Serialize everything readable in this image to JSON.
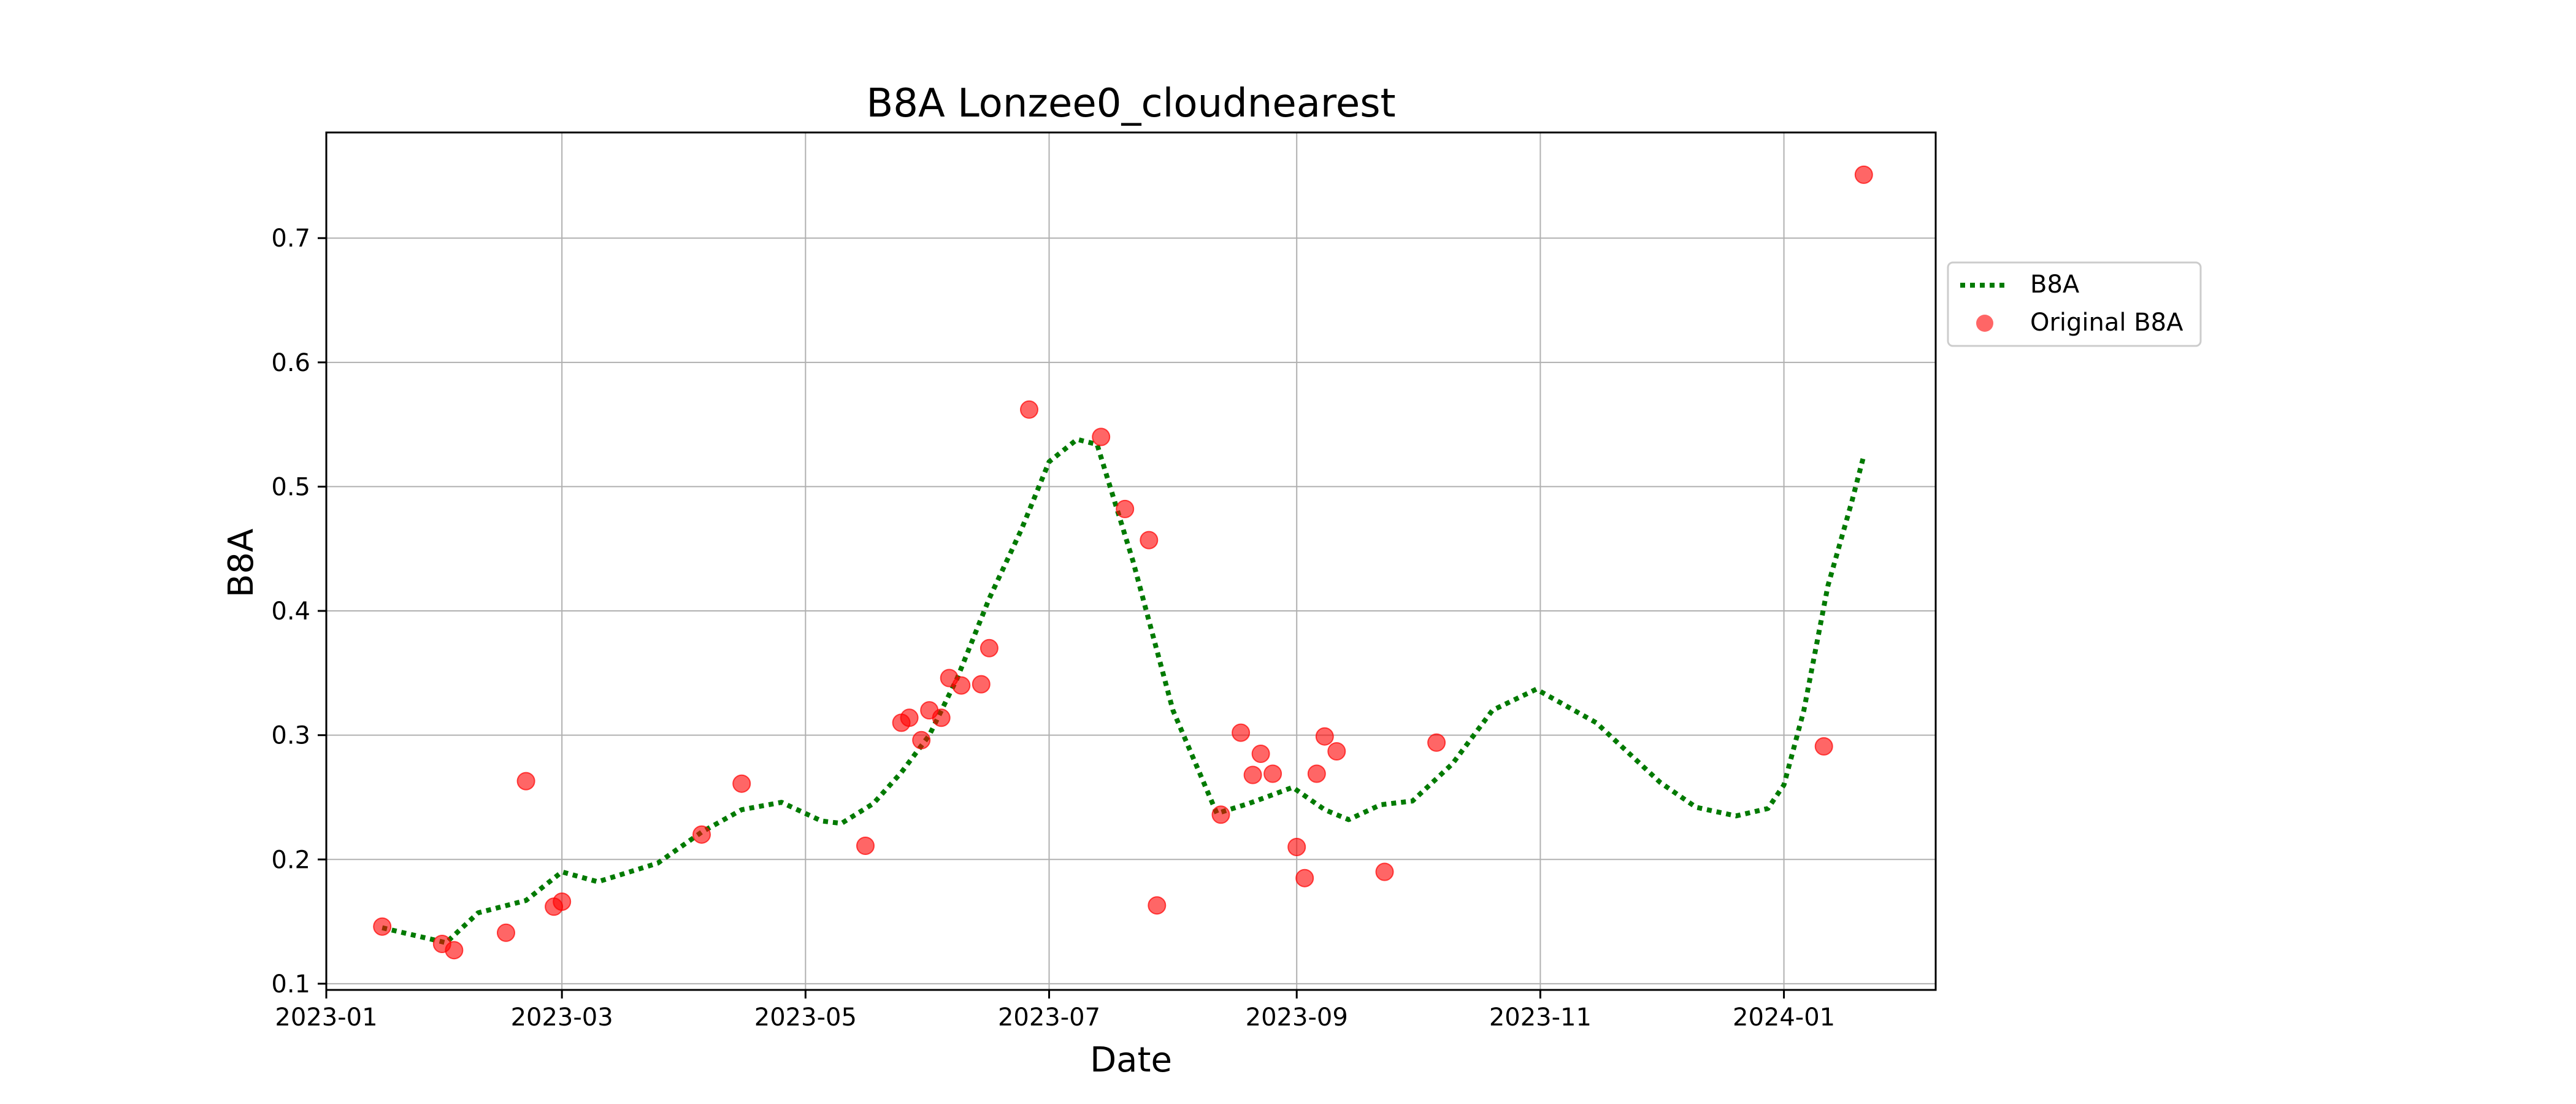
{
  "chart_data": {
    "type": "line",
    "title": "B8A Lonzee0_cloudnearest",
    "xlabel": "Date",
    "ylabel": "B8A",
    "x_axis_type": "date",
    "xlim": [
      "2023-01-01",
      "2024-02-08"
    ],
    "ylim": [
      0.095,
      0.785
    ],
    "x_ticks": [
      "2023-01",
      "2023-03",
      "2023-05",
      "2023-07",
      "2023-09",
      "2023-11",
      "2024-01"
    ],
    "y_ticks": [
      0.1,
      0.2,
      0.3,
      0.4,
      0.5,
      0.6,
      0.7
    ],
    "y_tick_labels": [
      "0.1",
      "0.2",
      "0.3",
      "0.4",
      "0.5",
      "0.6",
      "0.7"
    ],
    "grid": true,
    "legend_position": "outside right, upper",
    "series": [
      {
        "name": "B8A",
        "style": "dotted line",
        "color": "#007a00",
        "points": [
          [
            "2023-01-15",
            0.145
          ],
          [
            "2023-01-31",
            0.133
          ],
          [
            "2023-02-03",
            0.142
          ],
          [
            "2023-02-08",
            0.157
          ],
          [
            "2023-02-20",
            0.167
          ],
          [
            "2023-03-01",
            0.19
          ],
          [
            "2023-03-10",
            0.182
          ],
          [
            "2023-03-25",
            0.197
          ],
          [
            "2023-04-05",
            0.222
          ],
          [
            "2023-04-15",
            0.24
          ],
          [
            "2023-04-25",
            0.246
          ],
          [
            "2023-05-05",
            0.231
          ],
          [
            "2023-05-10",
            0.229
          ],
          [
            "2023-05-18",
            0.245
          ],
          [
            "2023-05-25",
            0.27
          ],
          [
            "2023-06-01",
            0.3
          ],
          [
            "2023-06-08",
            0.346
          ],
          [
            "2023-06-16",
            0.41
          ],
          [
            "2023-06-24",
            0.465
          ],
          [
            "2023-07-01",
            0.52
          ],
          [
            "2023-07-08",
            0.538
          ],
          [
            "2023-07-13",
            0.534
          ],
          [
            "2023-07-22",
            0.44
          ],
          [
            "2023-08-01",
            0.32
          ],
          [
            "2023-08-12",
            0.237
          ],
          [
            "2023-08-20",
            0.245
          ],
          [
            "2023-08-31",
            0.258
          ],
          [
            "2023-09-08",
            0.24
          ],
          [
            "2023-09-14",
            0.232
          ],
          [
            "2023-09-22",
            0.244
          ],
          [
            "2023-09-30",
            0.247
          ],
          [
            "2023-10-10",
            0.277
          ],
          [
            "2023-10-20",
            0.32
          ],
          [
            "2023-10-31",
            0.337
          ],
          [
            "2023-11-15",
            0.31
          ],
          [
            "2023-12-01",
            0.262
          ],
          [
            "2023-12-10",
            0.242
          ],
          [
            "2023-12-20",
            0.235
          ],
          [
            "2023-12-28",
            0.241
          ],
          [
            "2024-01-01",
            0.26
          ],
          [
            "2024-01-06",
            0.32
          ],
          [
            "2024-01-12",
            0.42
          ],
          [
            "2024-01-18",
            0.488
          ],
          [
            "2024-01-21",
            0.525
          ]
        ]
      },
      {
        "name": "Original B8A",
        "style": "scatter",
        "color": "#ff0000",
        "points": [
          [
            "2023-01-15",
            0.146
          ],
          [
            "2023-01-30",
            0.132
          ],
          [
            "2023-02-02",
            0.127
          ],
          [
            "2023-02-15",
            0.141
          ],
          [
            "2023-02-20",
            0.263
          ],
          [
            "2023-02-27",
            0.162
          ],
          [
            "2023-03-01",
            0.166
          ],
          [
            "2023-04-05",
            0.22
          ],
          [
            "2023-04-15",
            0.261
          ],
          [
            "2023-05-16",
            0.211
          ],
          [
            "2023-05-25",
            0.31
          ],
          [
            "2023-05-27",
            0.314
          ],
          [
            "2023-05-30",
            0.296
          ],
          [
            "2023-06-01",
            0.32
          ],
          [
            "2023-06-04",
            0.314
          ],
          [
            "2023-06-06",
            0.346
          ],
          [
            "2023-06-09",
            0.34
          ],
          [
            "2023-06-14",
            0.341
          ],
          [
            "2023-06-16",
            0.37
          ],
          [
            "2023-06-26",
            0.562
          ],
          [
            "2023-07-14",
            0.54
          ],
          [
            "2023-07-20",
            0.482
          ],
          [
            "2023-07-26",
            0.457
          ],
          [
            "2023-07-28",
            0.163
          ],
          [
            "2023-08-13",
            0.236
          ],
          [
            "2023-08-18",
            0.302
          ],
          [
            "2023-08-21",
            0.268
          ],
          [
            "2023-08-23",
            0.285
          ],
          [
            "2023-08-26",
            0.269
          ],
          [
            "2023-09-01",
            0.21
          ],
          [
            "2023-09-03",
            0.185
          ],
          [
            "2023-09-06",
            0.269
          ],
          [
            "2023-09-08",
            0.299
          ],
          [
            "2023-09-11",
            0.287
          ],
          [
            "2023-09-23",
            0.19
          ],
          [
            "2023-10-06",
            0.294
          ],
          [
            "2024-01-11",
            0.291
          ],
          [
            "2024-01-21",
            0.751
          ]
        ]
      }
    ]
  }
}
